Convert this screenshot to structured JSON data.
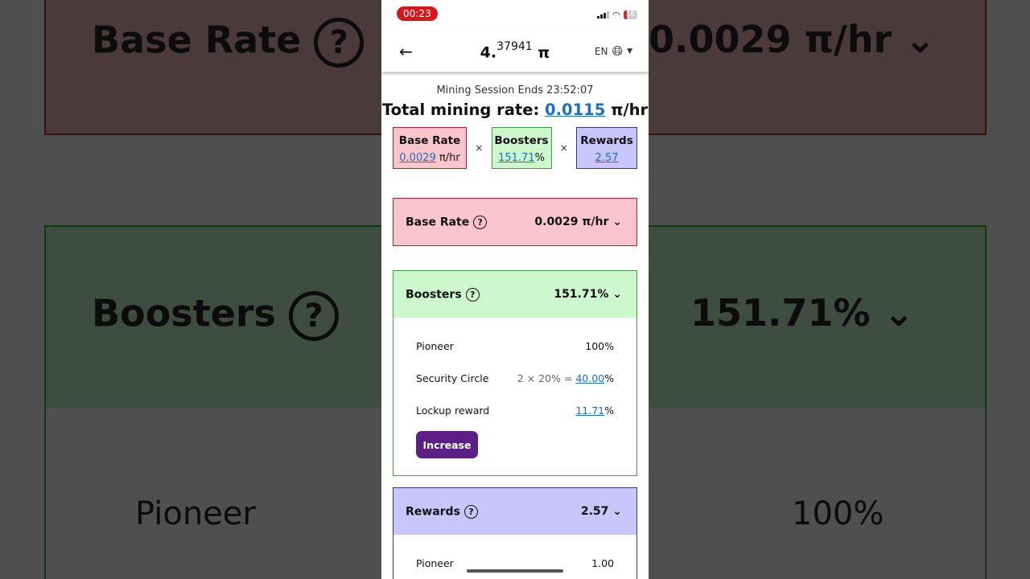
{
  "status_bar": {
    "time": "00:23",
    "battery": "16"
  },
  "header": {
    "balance_int": "4.",
    "balance_frac": "37941",
    "currency": "π",
    "lang": "EN"
  },
  "session": {
    "label": "Mining Session Ends 23:52:07"
  },
  "total": {
    "label": "Total mining rate:",
    "value": "0.0115",
    "unit": "π/hr"
  },
  "factors": {
    "base": {
      "title": "Base Rate",
      "value": "0.0029",
      "unit": "π/hr"
    },
    "boosters": {
      "title": "Boosters",
      "value": "151.71",
      "unit": "%"
    },
    "rewards": {
      "title": "Rewards",
      "value": "2.57"
    },
    "times": "×"
  },
  "base_card": {
    "title": "Base Rate",
    "value": "0.0029 π/hr"
  },
  "boosters_card": {
    "title": "Boosters",
    "value": "151.71%",
    "rows": [
      {
        "label": "Pioneer",
        "value": "100%"
      },
      {
        "label": "Security Circle",
        "prefix": "2 × 20% = ",
        "link": "40.00",
        "suffix": "%"
      },
      {
        "label": "Lockup reward",
        "link": "11.71",
        "suffix": "%"
      }
    ],
    "button": "Increase"
  },
  "rewards_card": {
    "title": "Rewards",
    "value": "2.57",
    "rows": [
      {
        "label": "Pioneer",
        "value": "1.00"
      }
    ]
  },
  "background": {
    "left": {
      "base": "Base Rate",
      "boosters": "Boosters",
      "pioneer": "Pioneer"
    },
    "right": {
      "base": "0.0029 π/hr",
      "boosters": "151.71%",
      "pioneer": "100%"
    }
  },
  "colors": {
    "link": "#1b6fc4",
    "base": "#fac5cb",
    "boosters": "#cdf7cc",
    "rewards": "#c8c6fb",
    "button": "#5b1f86"
  }
}
